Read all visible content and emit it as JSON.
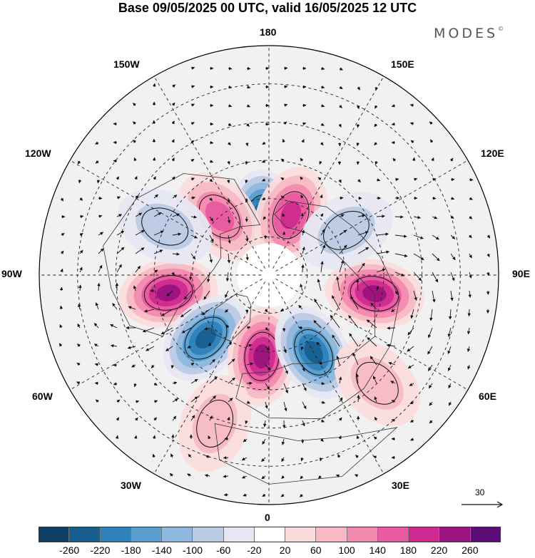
{
  "title": "Base 09/05/2025 00 UTC, valid 16/05/2025 12 UTC",
  "brand": "MODES",
  "brand_mark": "©",
  "longitude_labels": {
    "top": "180",
    "bottom": "0",
    "left": "90W",
    "right": "90E",
    "upper_left_150": "150W",
    "upper_left_120": "120W",
    "upper_right_150": "150E",
    "upper_right_120": "120E",
    "lower_left_60": "60W",
    "lower_left_30": "30W",
    "lower_right_60": "60E",
    "lower_right_30": "30E"
  },
  "reference_vector": {
    "label": "30",
    "icon": "arrow-right-icon"
  },
  "colorbar": {
    "colors": [
      "#0c3f63",
      "#185f8f",
      "#2e82bb",
      "#5b9fd0",
      "#8fb8de",
      "#bccbe4",
      "#e6e7f3",
      "#ffffff",
      "#fbdcdc",
      "#f7b9c4",
      "#f28bb0",
      "#e95aa1",
      "#cf2a8f",
      "#9c127e",
      "#5c0d78"
    ],
    "ticks": [
      "-260",
      "-220",
      "-180",
      "-140",
      "-100",
      "-60",
      "-20",
      "20",
      "60",
      "100",
      "140",
      "180",
      "220",
      "260"
    ]
  },
  "anomalies": [
    {
      "sign": "negative",
      "level": 7,
      "lon": -175,
      "colat": 22
    },
    {
      "sign": "positive",
      "level": 4,
      "lon": -140,
      "colat": 30
    },
    {
      "sign": "positive",
      "level": 5,
      "lon": 160,
      "colat": 25
    },
    {
      "sign": "positive",
      "level": 6,
      "lon": -80,
      "colat": 40
    },
    {
      "sign": "negative",
      "level": 6,
      "lon": -45,
      "colat": 35
    },
    {
      "sign": "positive",
      "level": 6,
      "lon": -5,
      "colat": 32
    },
    {
      "sign": "negative",
      "level": 6,
      "lon": 30,
      "colat": 35
    },
    {
      "sign": "positive",
      "level": 6,
      "lon": 80,
      "colat": 42
    },
    {
      "sign": "negative",
      "level": 2,
      "lon": 120,
      "colat": 35
    },
    {
      "sign": "negative",
      "level": 2,
      "lon": -115,
      "colat": 45
    },
    {
      "sign": "positive",
      "level": 2,
      "lon": 45,
      "colat": 60
    },
    {
      "sign": "positive",
      "level": 2,
      "lon": -20,
      "colat": 62
    }
  ]
}
